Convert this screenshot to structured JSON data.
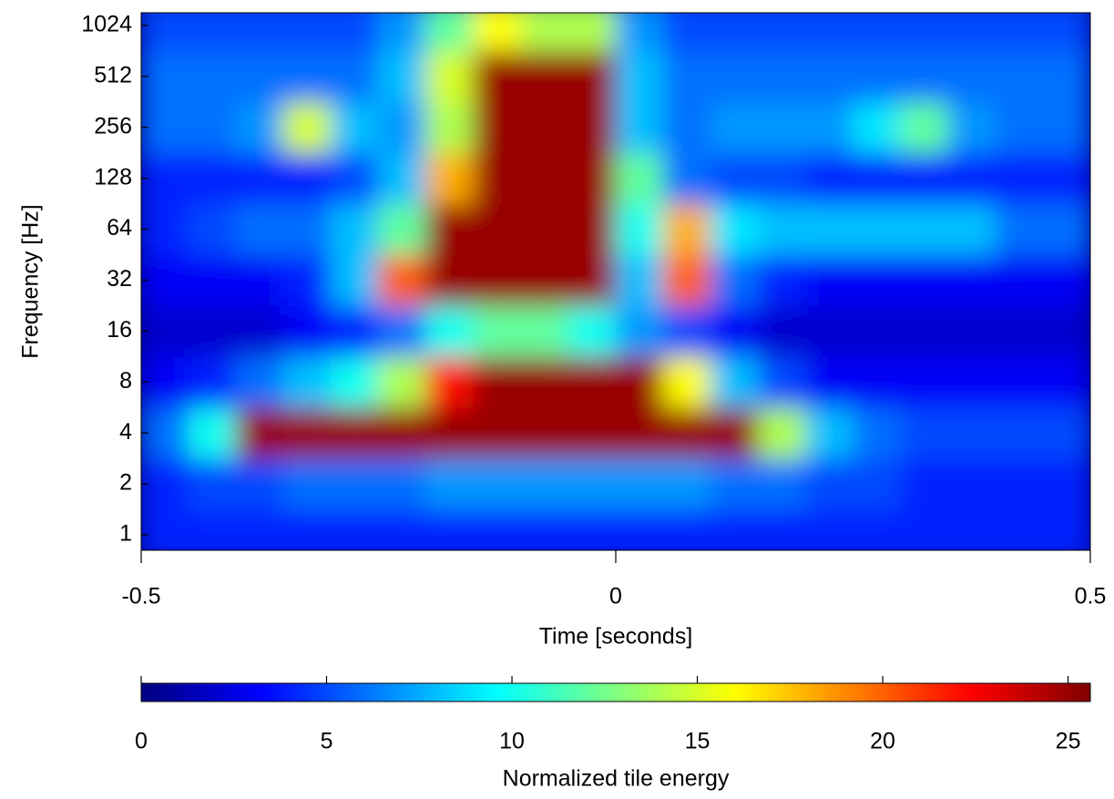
{
  "chart_data": {
    "type": "heatmap",
    "colormap": "jet",
    "ylabel": "Frequency [Hz]",
    "xlabel": "Time [seconds]",
    "colorbar_label": "Normalized tile energy",
    "xlim": [
      -0.5,
      0.5
    ],
    "xticks": [
      -0.5,
      0,
      0.5
    ],
    "ylim": [
      0.81,
      1218
    ],
    "yscale": "log2",
    "yticks": [
      1,
      2,
      4,
      8,
      16,
      32,
      64,
      128,
      256,
      512,
      1024
    ],
    "clim": [
      0,
      25.6
    ],
    "cticks": [
      0,
      5,
      10,
      15,
      20,
      25
    ],
    "x": [
      -0.475,
      -0.425,
      -0.375,
      -0.325,
      -0.275,
      -0.225,
      -0.175,
      -0.125,
      -0.075,
      -0.025,
      0.025,
      0.075,
      0.125,
      0.175,
      0.225,
      0.275,
      0.325,
      0.375,
      0.425,
      0.475
    ],
    "y": [
      1,
      2,
      4,
      8,
      16,
      32,
      64,
      128,
      256,
      512,
      1024
    ],
    "z": [
      [
        4,
        4,
        4,
        4,
        4,
        4,
        4,
        4,
        4,
        4,
        4,
        4,
        4,
        4,
        4,
        4,
        4,
        4,
        4,
        4
      ],
      [
        4,
        5,
        5,
        6,
        6,
        6,
        7,
        7,
        7,
        7,
        7,
        7,
        6,
        6,
        5,
        5,
        4,
        4,
        4,
        4
      ],
      [
        6,
        10,
        25,
        25,
        25,
        25,
        25,
        25,
        25,
        25,
        25,
        25,
        25,
        14,
        8,
        6,
        5,
        5,
        5,
        5
      ],
      [
        3,
        4,
        6,
        8,
        10,
        14,
        22,
        25,
        25,
        25,
        25,
        16,
        8,
        5,
        3,
        3,
        3,
        3,
        3,
        3
      ],
      [
        2,
        2,
        2,
        3,
        4,
        6,
        10,
        12,
        12,
        10,
        7,
        5,
        3,
        2,
        2,
        2,
        2,
        2,
        2,
        2
      ],
      [
        3,
        3,
        3,
        4,
        8,
        20,
        25,
        25,
        25,
        25,
        8,
        20,
        6,
        4,
        3,
        3,
        3,
        3,
        3,
        3
      ],
      [
        4,
        5,
        6,
        6,
        8,
        12,
        25,
        25,
        25,
        25,
        10,
        18,
        9,
        8,
        8,
        8,
        8,
        8,
        6,
        6
      ],
      [
        4,
        4,
        4,
        4,
        5,
        8,
        18,
        25,
        25,
        25,
        12,
        6,
        5,
        5,
        4,
        4,
        4,
        4,
        4,
        4
      ],
      [
        6,
        6,
        7,
        15,
        8,
        7,
        14,
        25,
        25,
        25,
        8,
        6,
        7,
        7,
        7,
        9,
        12,
        7,
        6,
        6
      ],
      [
        6,
        6,
        6,
        6,
        6,
        8,
        15,
        25,
        25,
        25,
        8,
        6,
        6,
        6,
        6,
        6,
        6,
        6,
        6,
        6
      ],
      [
        5,
        5,
        5,
        5,
        5,
        7,
        12,
        16,
        14,
        14,
        7,
        5,
        5,
        5,
        5,
        5,
        5,
        5,
        5,
        5
      ]
    ]
  }
}
